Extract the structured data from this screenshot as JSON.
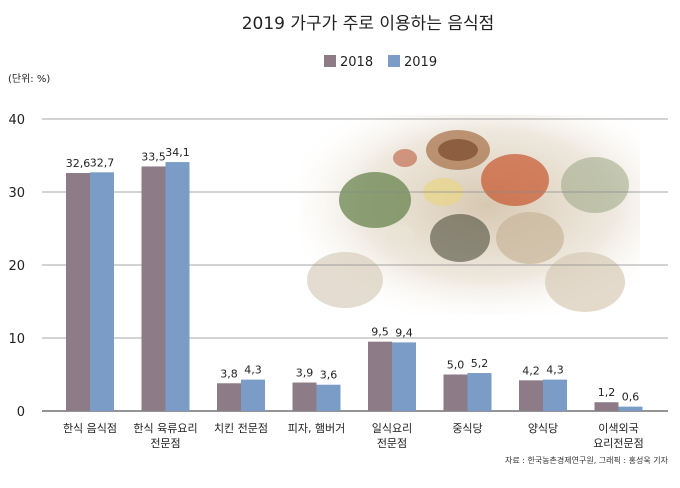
{
  "chart_data": {
    "type": "bar",
    "title": "2019 가구가 주로 이용하는 음식점",
    "unit_label": "(단위: %)",
    "ylim": [
      0,
      40
    ],
    "yticks": [
      "0",
      "10",
      "20",
      "30",
      "40"
    ],
    "grid": true,
    "legend_position": "top-center",
    "categories": [
      [
        "한식 음식점"
      ],
      [
        "한식 육류요리",
        "전문점"
      ],
      [
        "치킨 전문점"
      ],
      [
        "피자, 햄버거"
      ],
      [
        "일식요리",
        "전문점"
      ],
      [
        "중식당"
      ],
      [
        "양식당"
      ],
      [
        "이색외국",
        "요리전문점"
      ]
    ],
    "series": [
      {
        "name": "2018",
        "color": "#8d7b88",
        "values": [
          32.6,
          33.5,
          3.8,
          3.9,
          9.5,
          5.0,
          4.2,
          1.2
        ],
        "labels": [
          "32,6",
          "33,5",
          "3,8",
          "3,9",
          "9,5",
          "5,0",
          "4,2",
          "1,2"
        ]
      },
      {
        "name": "2019",
        "color": "#7b9cc6",
        "values": [
          32.7,
          34.1,
          4.3,
          3.6,
          9.4,
          5.2,
          4.3,
          0.6
        ],
        "labels": [
          "32,7",
          "34,1",
          "4,3",
          "3,6",
          "9,4",
          "5,2",
          "4,3",
          "0,6"
        ]
      }
    ],
    "source": "자료 : 한국농촌경제연구원, 그래픽 : 홍성욱 기자"
  }
}
